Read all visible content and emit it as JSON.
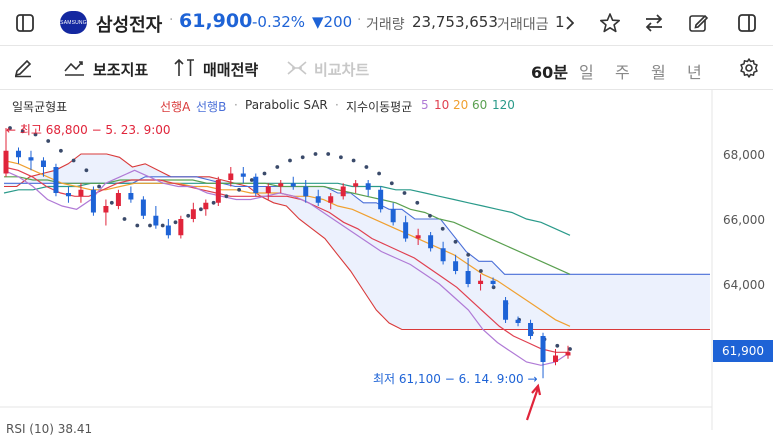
{
  "header": {
    "logo_text": "SAMSUNG",
    "stock_name": "삼성전자",
    "price": "61,900",
    "change_pct": "-0.32%",
    "change_abs": "▼200",
    "volume_label": "거래량",
    "volume_value": "23,753,653",
    "amount_label": "거래대금",
    "amount_value": "1",
    "more_icon": "chevron-right-icon",
    "colors": {
      "down": "#1e63d6",
      "up": "#e0243a"
    }
  },
  "toolbar": {
    "indicators_label": "보조지표",
    "strategy_label": "매매전략",
    "compare_label": "비교차트",
    "periods": [
      "60분",
      "일",
      "주",
      "월",
      "년"
    ],
    "active_period": "60분"
  },
  "legend": {
    "ichimoku": "일목균형표",
    "span_a": "선행A",
    "span_b": "선행B",
    "sar": "Parabolic SAR",
    "ema": "지수이동평균",
    "ema_periods": [
      "5",
      "10",
      "20",
      "60",
      "120"
    ],
    "separator": "·"
  },
  "annotations": {
    "high": "← 최고 68,800 − 5. 23. 9:00",
    "low": "최저 61,100 − 6. 14. 9:00 →"
  },
  "axis": {
    "ticks": [
      "68,000",
      "66,000",
      "64,000"
    ],
    "current_price": "61,900"
  },
  "rsi_label": "RSI (10) 38.41",
  "chart_data": {
    "type": "line",
    "title": "",
    "interval": "60분",
    "y_ticks": [
      68000,
      66000,
      64000
    ],
    "ylim": [
      60300,
      69000
    ],
    "high": {
      "value": 68800,
      "time": "5. 23. 9:00"
    },
    "low": {
      "value": 61100,
      "time": "6. 14. 9:00"
    },
    "last_price": 61900,
    "series": [
      {
        "name": "선행A",
        "color": "#d93a3a",
        "values": [
          67000,
          67000,
          67300,
          67400,
          67500,
          67700,
          68000,
          68000,
          68000,
          67900,
          67600,
          67700,
          67500,
          67300,
          67300,
          67300,
          67300,
          67200,
          67100,
          67000,
          66700,
          66500,
          66400,
          66000,
          65700,
          65400,
          64900,
          64400,
          63800,
          63200,
          62800,
          62600,
          62600,
          62600,
          62600,
          62600,
          62600,
          62600,
          62600,
          62600,
          62600,
          62600,
          62600,
          62600,
          62600,
          62600,
          62600,
          62600,
          62600,
          62600,
          62600,
          62600,
          62600,
          62600,
          62600,
          62600
        ]
      },
      {
        "name": "선행B",
        "color": "#4a6fd8",
        "values": [
          67100,
          67100,
          67100,
          67100,
          67100,
          67100,
          67100,
          67100,
          67100,
          67100,
          67100,
          67300,
          67300,
          67300,
          67300,
          67300,
          67200,
          67100,
          67000,
          67000,
          67000,
          67000,
          67000,
          67000,
          67000,
          67000,
          66800,
          66800,
          66500,
          66500,
          66300,
          66300,
          66000,
          66000,
          66000,
          65500,
          65000,
          64700,
          64700,
          64300,
          64300,
          64300,
          64300,
          64300,
          64300,
          64300,
          64300,
          64300,
          64300,
          64300,
          64300,
          64300,
          64300,
          64300,
          64300,
          64300
        ]
      },
      {
        "name": "Parabolic SAR",
        "color": "#3a4a6a",
        "values": [
          68800,
          68700,
          68600,
          68400,
          68100,
          67800,
          67500,
          67000,
          66500,
          66000,
          65800,
          65800,
          65800,
          65900,
          66100,
          66300,
          66500,
          66700,
          66900,
          67200,
          67400,
          67600,
          67800,
          67900,
          68000,
          68000,
          67900,
          67800,
          67600,
          67400,
          67100,
          66800,
          66500,
          66100,
          65700,
          65300,
          64900,
          64400,
          63900,
          63400,
          62900,
          62500,
          62300,
          62100,
          62000
        ]
      },
      {
        "name": "5",
        "color": "#b07ad6",
        "values": [
          67500,
          67300,
          67000,
          66600,
          66400,
          66300,
          66600,
          67100,
          67300,
          67500,
          67300,
          67100,
          67000,
          67000,
          66800,
          66700,
          66600,
          66600,
          66700,
          66800,
          66700,
          66500,
          66200,
          65900,
          65600,
          65300,
          65000,
          64800,
          64600,
          64300,
          64000,
          63600,
          63200,
          62600,
          62200,
          61900,
          61600,
          61500,
          61600,
          61900
        ]
      },
      {
        "name": "10",
        "color": "#e04050",
        "values": [
          67600,
          67500,
          67300,
          67000,
          66800,
          66700,
          66700,
          66900,
          67100,
          67200,
          67200,
          67200,
          67100,
          67000,
          66900,
          66800,
          66700,
          66700,
          66700,
          66700,
          66700,
          66600,
          66400,
          66200,
          65900,
          65700,
          65400,
          65200,
          65000,
          64800,
          64500,
          64200,
          63900,
          63500,
          63100,
          62700,
          62400,
          62200,
          62000,
          61900,
          61900
        ]
      },
      {
        "name": "20",
        "color": "#f0a030",
        "values": [
          67800,
          67700,
          67500,
          67300,
          67100,
          67000,
          66900,
          66900,
          67000,
          67100,
          67100,
          67100,
          67100,
          67000,
          67000,
          66900,
          66900,
          66800,
          66800,
          66800,
          66700,
          66700,
          66600,
          66400,
          66300,
          66100,
          65900,
          65700,
          65500,
          65300,
          65100,
          64900,
          64600,
          64300,
          64100,
          63800,
          63500,
          63200,
          62900,
          62700
        ]
      },
      {
        "name": "60",
        "color": "#5aa050",
        "values": [
          67300,
          67300,
          67200,
          67200,
          67100,
          67100,
          67100,
          67100,
          67200,
          67200,
          67200,
          67200,
          67200,
          67200,
          67100,
          67100,
          67100,
          67100,
          67100,
          67000,
          67000,
          67000,
          67000,
          66900,
          66800,
          66700,
          66600,
          66500,
          66300,
          66200,
          66000,
          65900,
          65700,
          65500,
          65300,
          65100,
          64900,
          64700,
          64500,
          64300
        ]
      },
      {
        "name": "120",
        "color": "#2a9a8a",
        "values": [
          66800,
          66900,
          66900,
          67000,
          67000,
          67000,
          67100,
          67100,
          67100,
          67100,
          67100,
          67100,
          67100,
          67100,
          67100,
          67100,
          67100,
          67100,
          67100,
          67100,
          67100,
          67100,
          67100,
          67100,
          67000,
          67000,
          67000,
          66900,
          66900,
          66800,
          66700,
          66600,
          66500,
          66400,
          66300,
          66200,
          66000,
          65900,
          65700,
          65500
        ]
      }
    ],
    "candles": [
      [
        67400,
        68800,
        67300,
        68100
      ],
      [
        68100,
        68200,
        67700,
        67900
      ],
      [
        67900,
        68100,
        67500,
        67800
      ],
      [
        67800,
        67900,
        67300,
        67600
      ],
      [
        67600,
        67700,
        66700,
        66800
      ],
      [
        66800,
        67000,
        66500,
        66700
      ],
      [
        66700,
        67100,
        66500,
        66900
      ],
      [
        66900,
        67000,
        66100,
        66200
      ],
      [
        66200,
        66600,
        65800,
        66400
      ],
      [
        66400,
        66900,
        66300,
        66800
      ],
      [
        66800,
        67000,
        66500,
        66600
      ],
      [
        66600,
        66700,
        66000,
        66100
      ],
      [
        66100,
        66400,
        65700,
        65800
      ],
      [
        65800,
        66000,
        65400,
        65500
      ],
      [
        65500,
        66100,
        65400,
        66000
      ],
      [
        66000,
        66500,
        65900,
        66300
      ],
      [
        66300,
        66600,
        66100,
        66500
      ],
      [
        66500,
        67300,
        66400,
        67200
      ],
      [
        67200,
        67600,
        67000,
        67400
      ],
      [
        67400,
        67600,
        67100,
        67300
      ],
      [
        67300,
        67400,
        66700,
        66800
      ],
      [
        66800,
        67100,
        66600,
        67000
      ],
      [
        67000,
        67200,
        66800,
        67100
      ],
      [
        67100,
        67300,
        66900,
        67000
      ],
      [
        67000,
        67200,
        66500,
        66700
      ],
      [
        66700,
        66900,
        66400,
        66500
      ],
      [
        66500,
        66800,
        66300,
        66700
      ],
      [
        66700,
        67100,
        66600,
        67000
      ],
      [
        67000,
        67200,
        66800,
        67100
      ],
      [
        67100,
        67200,
        66700,
        66900
      ],
      [
        66900,
        67000,
        66200,
        66300
      ],
      [
        66300,
        66500,
        65800,
        65900
      ],
      [
        65900,
        66100,
        65300,
        65400
      ],
      [
        65400,
        65700,
        65200,
        65500
      ],
      [
        65500,
        65600,
        65000,
        65100
      ],
      [
        65100,
        65300,
        64600,
        64700
      ],
      [
        64700,
        64900,
        64300,
        64400
      ],
      [
        64400,
        64800,
        63900,
        64000
      ],
      [
        64000,
        64300,
        63800,
        64100
      ],
      [
        64100,
        64200,
        63900,
        64000
      ],
      [
        63500,
        63600,
        62800,
        62900
      ],
      [
        62900,
        63000,
        62700,
        62800
      ],
      [
        62800,
        62900,
        62300,
        62400
      ],
      [
        62400,
        62500,
        61100,
        61600
      ],
      [
        61600,
        62000,
        61500,
        61800
      ],
      [
        61800,
        62100,
        61700,
        61900
      ]
    ]
  }
}
